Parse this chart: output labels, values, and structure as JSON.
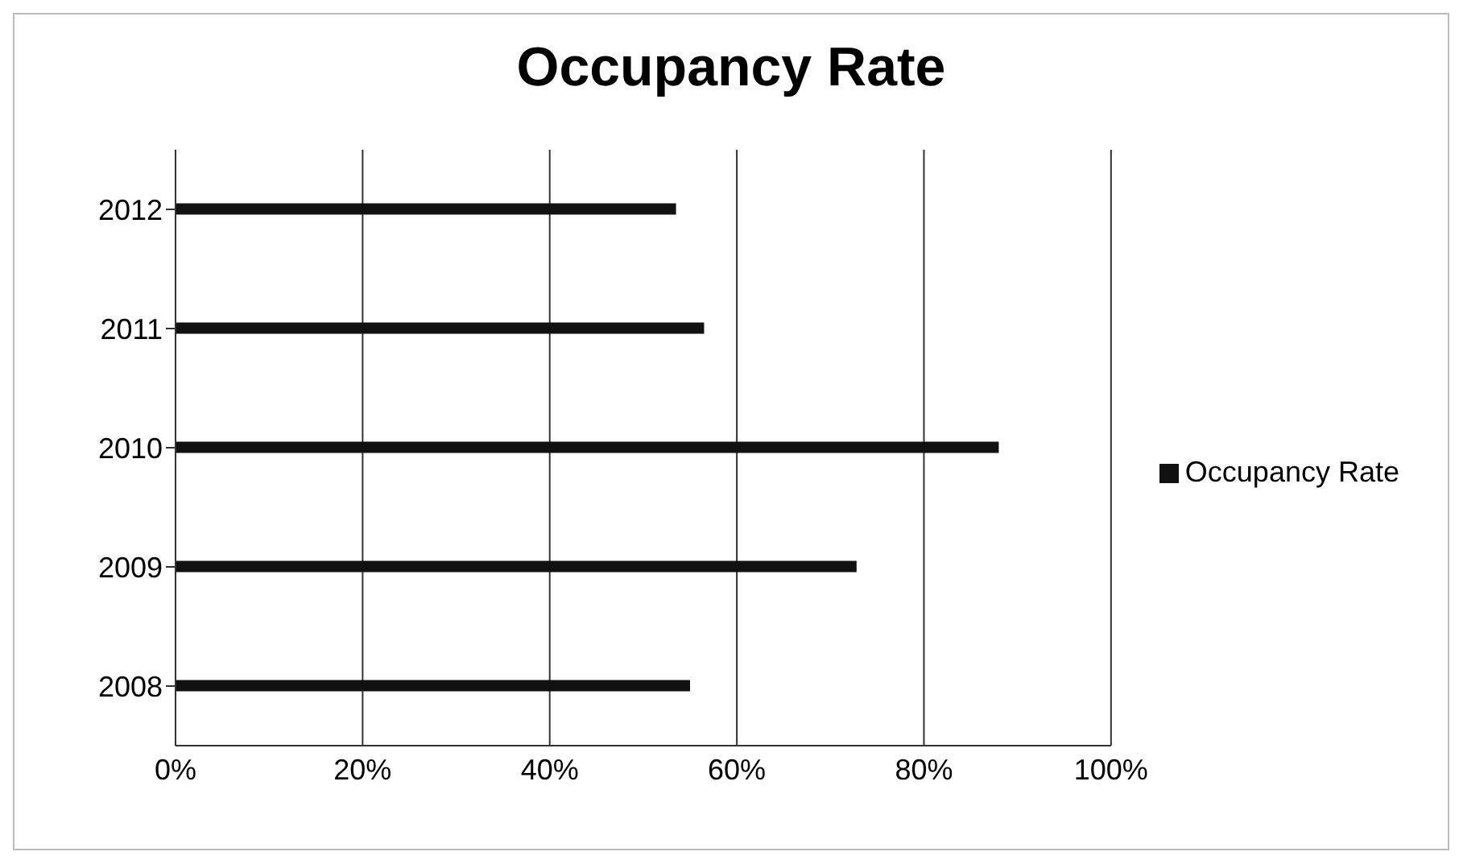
{
  "chart_data": {
    "type": "bar",
    "title": "Occupancy Rate",
    "orientation": "horizontal",
    "categories": [
      "2012",
      "2011",
      "2010",
      "2009",
      "2008"
    ],
    "series": [
      {
        "name": "Occupancy Rate",
        "color": "#111111",
        "values": [
          53.5,
          56.5,
          88,
          72.8,
          55
        ]
      }
    ],
    "xlim": [
      0,
      100
    ],
    "xticks": [
      {
        "value": 0,
        "label": "0%"
      },
      {
        "value": 20,
        "label": "20%"
      },
      {
        "value": 40,
        "label": "40%"
      },
      {
        "value": 60,
        "label": "60%"
      },
      {
        "value": 80,
        "label": "80%"
      },
      {
        "value": 100,
        "label": "100%"
      }
    ],
    "grid": "x",
    "legend": "right"
  }
}
